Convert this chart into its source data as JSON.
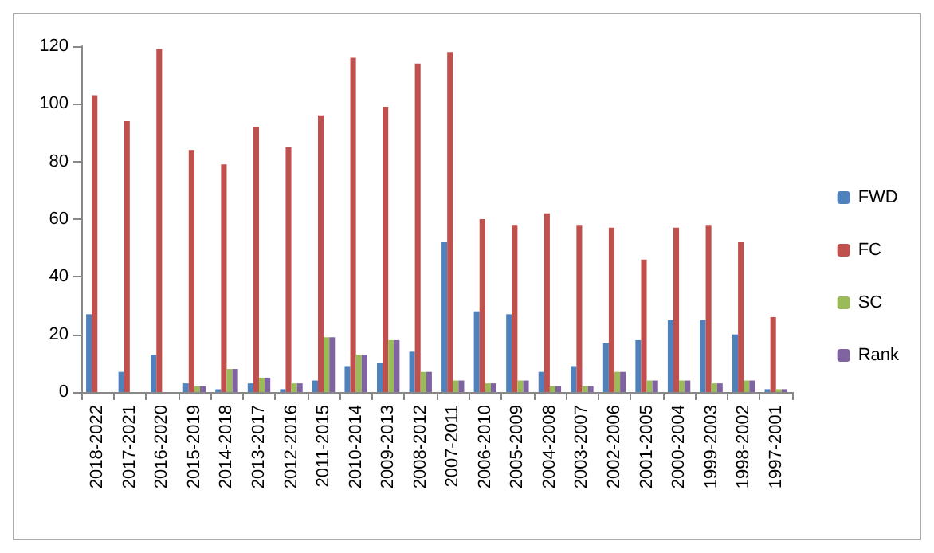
{
  "chart_data": {
    "type": "bar",
    "categories": [
      "2018-2022",
      "2017-2021",
      "2016-2020",
      "2015-2019",
      "2014-2018",
      "2013-2017",
      "2012-2016",
      "2011-2015",
      "2010-2014",
      "2009-2013",
      "2008-2012",
      "2007-2011",
      "2006-2010",
      "2005-2009",
      "2004-2008",
      "2003-2007",
      "2002-2006",
      "2001-2005",
      "2000-2004",
      "1999-2003",
      "1998-2002",
      "1997-2001"
    ],
    "series": [
      {
        "name": "FWD",
        "color": "#4f81bd",
        "values": [
          27,
          7,
          13,
          3,
          1,
          3,
          1,
          4,
          9,
          10,
          14,
          52,
          28,
          27,
          7,
          9,
          17,
          18,
          25,
          25,
          20,
          1
        ]
      },
      {
        "name": "FC",
        "color": "#c0504d",
        "values": [
          103,
          94,
          119,
          84,
          79,
          92,
          85,
          96,
          116,
          99,
          114,
          118,
          60,
          58,
          62,
          58,
          57,
          46,
          57,
          58,
          52,
          26
        ]
      },
      {
        "name": "SC",
        "color": "#9bbb59",
        "values": [
          0,
          0,
          0,
          2,
          8,
          5,
          3,
          19,
          13,
          18,
          7,
          4,
          3,
          4,
          2,
          2,
          7,
          4,
          4,
          3,
          4,
          1
        ]
      },
      {
        "name": "Rank",
        "color": "#8064a2",
        "values": [
          0,
          0,
          0,
          2,
          8,
          5,
          3,
          19,
          13,
          18,
          7,
          4,
          3,
          4,
          2,
          2,
          7,
          4,
          4,
          3,
          4,
          1
        ]
      }
    ],
    "ylim": [
      0,
      120
    ],
    "yticks": [
      0,
      20,
      40,
      60,
      80,
      100,
      120
    ],
    "grid": false,
    "legend": "right"
  }
}
